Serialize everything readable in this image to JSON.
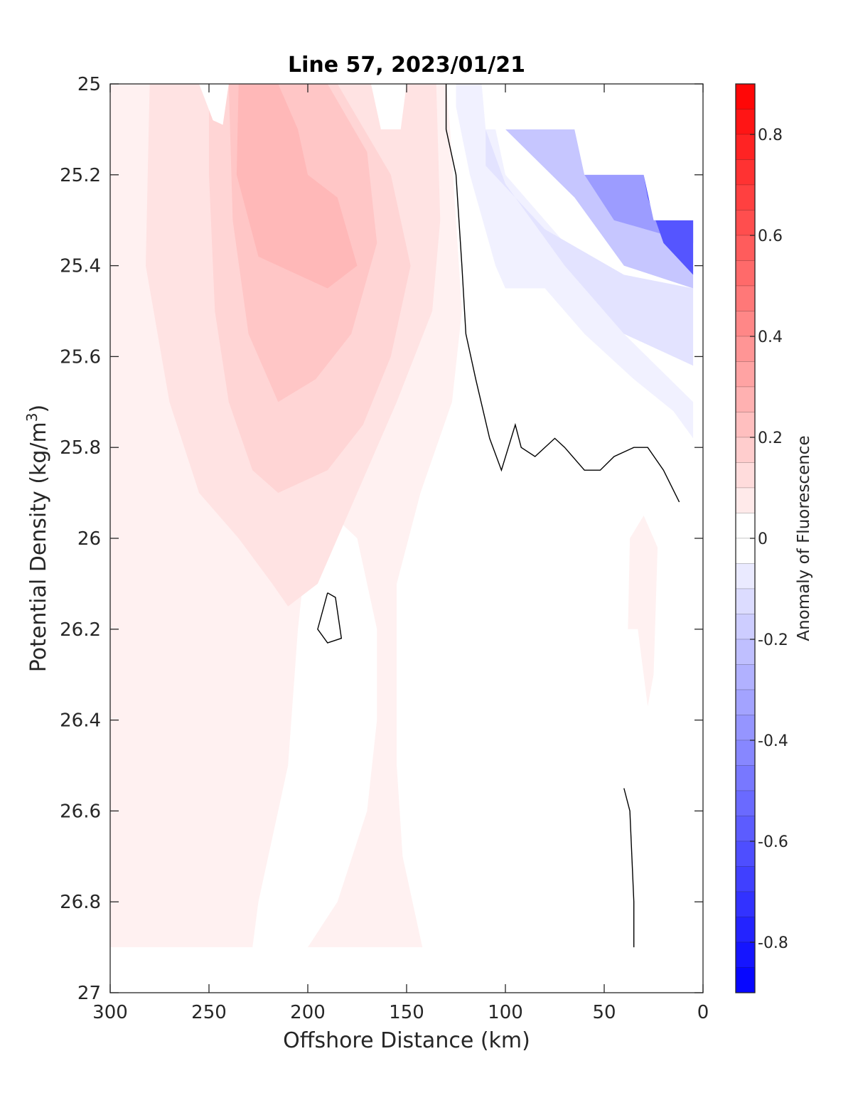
{
  "chart_data": {
    "type": "heatmap",
    "title": "Line 57, 2023/01/21",
    "xlabel": "Offshore Distance (km)",
    "ylabel_main": "Potential Density (kg/m",
    "ylabel_sup": "3",
    "ylabel_close": ")",
    "xlim": [
      300,
      0
    ],
    "ylim": [
      25,
      27
    ],
    "x_reversed": true,
    "y_reversed": true,
    "x_ticks": [
      300,
      250,
      200,
      150,
      100,
      50,
      0
    ],
    "x_tick_labels": [
      "300",
      "250",
      "200",
      "150",
      "100",
      "50",
      "0"
    ],
    "y_ticks": [
      25,
      25.2,
      25.4,
      25.6,
      25.8,
      26,
      26.2,
      26.4,
      26.6,
      26.8,
      27
    ],
    "y_tick_labels": [
      "25",
      "25.2",
      "25.4",
      "25.6",
      "25.8",
      "26",
      "26.2",
      "26.4",
      "26.6",
      "26.8",
      "27"
    ],
    "colorbar": {
      "label": "Anomaly of Fluorescence",
      "range": [
        -0.9,
        0.9
      ],
      "level_step": 0.05,
      "ticks": [
        0.8,
        0.6,
        0.4,
        0.2,
        0,
        -0.2,
        -0.4,
        -0.6,
        -0.8
      ],
      "tick_labels": [
        "0.8",
        "0.6",
        "0.4",
        "0.2",
        "0",
        "-0.2",
        "-0.4",
        "-0.6",
        "-0.8"
      ],
      "positive_color": "#ff0000",
      "negative_color": "#0000ff",
      "neutral_color": "#ffffff"
    },
    "regions": [
      {
        "level": 0.05,
        "points": [
          [
            285,
            25
          ],
          [
            130,
            25
          ],
          [
            128,
            25.1
          ],
          [
            125,
            25.3
          ],
          [
            122,
            25.5
          ],
          [
            127,
            25.7
          ],
          [
            143,
            25.9
          ],
          [
            155,
            26.1
          ],
          [
            155,
            26.3
          ],
          [
            155,
            26.5
          ],
          [
            152,
            26.7
          ],
          [
            142,
            26.9
          ],
          [
            200,
            26.9
          ],
          [
            185,
            26.8
          ],
          [
            170,
            26.6
          ],
          [
            165,
            26.4
          ],
          [
            165,
            26.2
          ],
          [
            175,
            26.0
          ],
          [
            192,
            25.93
          ],
          [
            200,
            26.0
          ],
          [
            205,
            26.2
          ],
          [
            210,
            26.5
          ],
          [
            225,
            26.8
          ],
          [
            228,
            26.9
          ],
          [
            300,
            26.9
          ],
          [
            300,
            25.0
          ]
        ]
      },
      {
        "level": 0.05,
        "points": [
          [
            37,
            26.0
          ],
          [
            30,
            25.95
          ],
          [
            23,
            26.02
          ],
          [
            25,
            26.3
          ],
          [
            28,
            26.37
          ],
          [
            33,
            26.2
          ],
          [
            38,
            26.2
          ]
        ]
      },
      {
        "level": 0.1,
        "points": [
          [
            280,
            25
          ],
          [
            135,
            25
          ],
          [
            133,
            25.3
          ],
          [
            137,
            25.5
          ],
          [
            155,
            25.7
          ],
          [
            175,
            25.9
          ],
          [
            195,
            26.1
          ],
          [
            210,
            26.15
          ],
          [
            218,
            26.1
          ],
          [
            235,
            26.0
          ],
          [
            255,
            25.9
          ],
          [
            270,
            25.7
          ],
          [
            282,
            25.4
          ]
        ]
      },
      {
        "level": 0.15,
        "points": [
          [
            250,
            25
          ],
          [
            185,
            25
          ],
          [
            158,
            25.2
          ],
          [
            148,
            25.4
          ],
          [
            158,
            25.6
          ],
          [
            172,
            25.75
          ],
          [
            190,
            25.85
          ],
          [
            215,
            25.9
          ],
          [
            228,
            25.85
          ],
          [
            240,
            25.7
          ],
          [
            247,
            25.5
          ],
          [
            250,
            25.2
          ]
        ]
      },
      {
        "level": 0.2,
        "points": [
          [
            240,
            25
          ],
          [
            190,
            25
          ],
          [
            170,
            25.15
          ],
          [
            165,
            25.35
          ],
          [
            178,
            25.55
          ],
          [
            196,
            25.65
          ],
          [
            215,
            25.7
          ],
          [
            230,
            25.55
          ],
          [
            238,
            25.3
          ]
        ]
      },
      {
        "level": 0.25,
        "points": [
          [
            235,
            25
          ],
          [
            215,
            25
          ],
          [
            205,
            25.1
          ],
          [
            200,
            25.2
          ],
          [
            185,
            25.25
          ],
          [
            175,
            25.4
          ],
          [
            190,
            25.45
          ],
          [
            205,
            25.42
          ],
          [
            225,
            25.38
          ],
          [
            236,
            25.2
          ]
        ]
      },
      {
        "level": -0.05,
        "points": [
          [
            125,
            25
          ],
          [
            110,
            25
          ],
          [
            100,
            25.2
          ],
          [
            70,
            25.35
          ],
          [
            40,
            25.55
          ],
          [
            5,
            25.7
          ],
          [
            5,
            25.78
          ],
          [
            15,
            25.72
          ],
          [
            35,
            25.65
          ],
          [
            60,
            25.55
          ],
          [
            80,
            25.45
          ],
          [
            100,
            25.45
          ],
          [
            105,
            25.4
          ],
          [
            118,
            25.2
          ],
          [
            125,
            25.05
          ]
        ]
      },
      {
        "level": -0.1,
        "points": [
          [
            110,
            25.1
          ],
          [
            100,
            25.22
          ],
          [
            70,
            25.4
          ],
          [
            40,
            25.55
          ],
          [
            5,
            25.62
          ],
          [
            5,
            25.45
          ],
          [
            40,
            25.42
          ],
          [
            80,
            25.32
          ],
          [
            110,
            25.18
          ]
        ]
      },
      {
        "level": -0.2,
        "points": [
          [
            100,
            25.1
          ],
          [
            65,
            25.25
          ],
          [
            40,
            25.4
          ],
          [
            5,
            25.45
          ],
          [
            5,
            25.3
          ],
          [
            25,
            25.3
          ],
          [
            30,
            25.2
          ],
          [
            60,
            25.2
          ],
          [
            65,
            25.1
          ]
        ]
      },
      {
        "level": -0.35,
        "points": [
          [
            65,
            25.1
          ],
          [
            60,
            25.2
          ],
          [
            45,
            25.3
          ],
          [
            5,
            25.35
          ],
          [
            5,
            25.3
          ],
          [
            25,
            25.3
          ],
          [
            30,
            25.2
          ],
          [
            60,
            25.2
          ],
          [
            65,
            25.1
          ]
        ]
      },
      {
        "level": -0.6,
        "points": [
          [
            30,
            25.2
          ],
          [
            25,
            25.3
          ],
          [
            5,
            25.3
          ],
          [
            5,
            25.42
          ],
          [
            20,
            25.35
          ],
          [
            28,
            25.25
          ]
        ]
      }
    ],
    "zero_contours": [
      [
        [
          130,
          25.0
        ],
        [
          130,
          25.1
        ],
        [
          125,
          25.2
        ],
        [
          122,
          25.4
        ],
        [
          120,
          25.55
        ],
        [
          115,
          25.65
        ],
        [
          108,
          25.78
        ],
        [
          102,
          25.85
        ],
        [
          95,
          25.75
        ],
        [
          92,
          25.8
        ],
        [
          85,
          25.82
        ],
        [
          75,
          25.78
        ],
        [
          70,
          25.8
        ],
        [
          60,
          25.85
        ],
        [
          52,
          25.85
        ],
        [
          45,
          25.82
        ],
        [
          35,
          25.8
        ],
        [
          28,
          25.8
        ],
        [
          20,
          25.85
        ],
        [
          12,
          25.92
        ]
      ],
      [
        [
          190,
          26.12
        ],
        [
          195,
          26.2
        ],
        [
          190,
          26.23
        ],
        [
          183,
          26.22
        ],
        [
          186,
          26.13
        ],
        [
          190,
          26.12
        ]
      ],
      [
        [
          35,
          26.9
        ],
        [
          35,
          26.8
        ],
        [
          36,
          26.7
        ],
        [
          37,
          26.6
        ],
        [
          40,
          26.55
        ]
      ]
    ],
    "masked_top_right": [
      [
        110,
        25.1
      ],
      [
        65,
        25.1
      ],
      [
        60,
        25.2
      ],
      [
        30,
        25.2
      ],
      [
        25,
        25.3
      ],
      [
        5,
        25.3
      ],
      [
        0,
        25.3
      ],
      [
        0,
        25.0
      ],
      [
        112,
        25.0
      ]
    ],
    "masked_top_notches": [
      [
        [
          255,
          25
        ],
        [
          248,
          25.08
        ],
        [
          243,
          25.09
        ],
        [
          240,
          25.0
        ]
      ],
      [
        [
          168,
          25
        ],
        [
          163,
          25.1
        ],
        [
          153,
          25.1
        ],
        [
          150,
          25.0
        ]
      ]
    ]
  }
}
